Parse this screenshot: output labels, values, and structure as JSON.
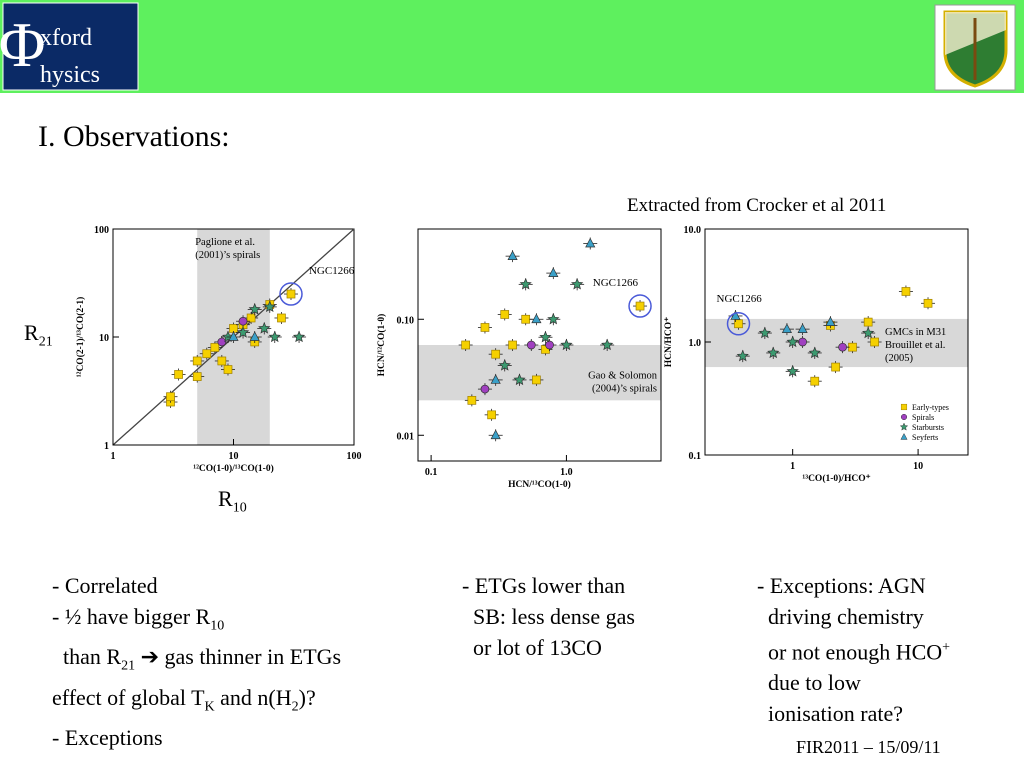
{
  "header": {
    "logo": [
      "Φ",
      "xford",
      "hysics"
    ]
  },
  "title": "I. Observations:",
  "credit": "Extracted from Crocker et al 2011",
  "footer": "FIR2011 – 15/09/11",
  "side_labels": [
    {
      "text": "R",
      "sub": "21"
    },
    {
      "text": "R",
      "sub": "10"
    }
  ],
  "columns": [
    [
      [
        "- Correlated"
      ],
      [
        "- ½ have bigger R",
        {
          "sub": "10"
        }
      ],
      [
        "  than R",
        {
          "sub": "21"
        },
        " ➔ gas thinner in ETGs"
      ],
      [
        "effect of global T",
        {
          "sub": "K"
        },
        " and n(H",
        {
          "sub": "2"
        },
        ")?"
      ],
      [
        "- Exceptions"
      ]
    ],
    [
      [
        "- ETGs lower than"
      ],
      [
        "  SB: less dense gas"
      ],
      [
        "  or lot of 13CO"
      ]
    ],
    [
      [
        "- Exceptions: AGN"
      ],
      [
        "  driving chemistry"
      ],
      [
        "  or not enough HCO",
        {
          "sup": "+"
        }
      ],
      [
        "  due to low"
      ],
      [
        "  ionisation rate?"
      ]
    ]
  ],
  "chart_data": [
    {
      "type": "scatter",
      "xlabel": "¹²CO(1-0)/¹³CO(1-0)",
      "ylabel": "¹²CO(2-1)/¹³CO(2-1)",
      "log_x": true,
      "log_y": true,
      "xlim": [
        1,
        100
      ],
      "ylim": [
        1,
        100
      ],
      "xticks": [
        1,
        10,
        100
      ],
      "yticks": [
        1,
        10,
        100
      ],
      "identity_line": true,
      "band": {
        "axis": "x",
        "range": [
          5,
          20
        ],
        "label": [
          "Paglione et al.",
          "(2001)’s  spirals"
        ]
      },
      "highlight": {
        "label": "NGC1266",
        "x": 30,
        "y": 25
      },
      "series": [
        {
          "marker": "square",
          "color": "#f5d000",
          "x": [
            3,
            3,
            3.5,
            5,
            5,
            6,
            7,
            8,
            9,
            10,
            12,
            14,
            15,
            20,
            25,
            30
          ],
          "y": [
            2.5,
            2.8,
            4.5,
            4.3,
            6,
            7,
            8,
            6,
            5,
            12,
            13,
            15,
            9,
            20,
            15,
            25
          ]
        },
        {
          "marker": "circle",
          "color": "#a040c0",
          "x": [
            8,
            12
          ],
          "y": [
            9,
            14
          ]
        },
        {
          "marker": "star",
          "color": "#3c9a70",
          "x": [
            9,
            12,
            15,
            18,
            20,
            22,
            35
          ],
          "y": [
            10,
            11,
            18,
            12,
            19,
            10,
            10
          ]
        },
        {
          "marker": "triangle",
          "color": "#3aa0c8",
          "x": [
            10,
            15
          ],
          "y": [
            10,
            10
          ]
        }
      ]
    },
    {
      "type": "scatter",
      "xlabel": "HCN/¹³CO(1-0)",
      "ylabel": "HCN/¹²CO(1-0)",
      "log_x": true,
      "log_y": true,
      "xlim": [
        0.08,
        5
      ],
      "ylim": [
        0.006,
        0.6
      ],
      "xticks": [
        0.1,
        {
          "value": 1,
          "label": "1.0"
        }
      ],
      "yticks": [
        0.01,
        {
          "value": 0.1,
          "label": "0.10"
        }
      ],
      "band": {
        "axis": "y",
        "range": [
          0.02,
          0.06
        ],
        "label": [
          "Gao & Solomon",
          "(2004)’s  spirals"
        ]
      },
      "highlight": {
        "label": "NGC1266",
        "x": 3.5,
        "y": 0.13
      },
      "series": [
        {
          "marker": "square",
          "color": "#f5d000",
          "x": [
            0.18,
            0.2,
            0.25,
            0.28,
            0.3,
            0.35,
            0.4,
            0.5,
            0.6,
            0.7,
            3.5
          ],
          "y": [
            0.06,
            0.02,
            0.085,
            0.015,
            0.05,
            0.11,
            0.06,
            0.1,
            0.03,
            0.055,
            0.13
          ]
        },
        {
          "marker": "circle",
          "color": "#a040c0",
          "x": [
            0.25,
            0.55,
            0.75
          ],
          "y": [
            0.025,
            0.06,
            0.06
          ]
        },
        {
          "marker": "star",
          "color": "#3c9a70",
          "x": [
            0.35,
            0.45,
            0.5,
            0.7,
            0.8,
            1.0,
            1.2,
            2
          ],
          "y": [
            0.04,
            0.03,
            0.2,
            0.07,
            0.1,
            0.06,
            0.2,
            0.06
          ]
        },
        {
          "marker": "triangle",
          "color": "#3aa0c8",
          "x": [
            0.3,
            0.3,
            0.4,
            0.8,
            1.5,
            0.6
          ],
          "y": [
            0.01,
            0.03,
            0.35,
            0.25,
            0.45,
            0.1
          ]
        }
      ]
    },
    {
      "type": "scatter",
      "xlabel": "¹³CO(1-0)/HCO⁺",
      "ylabel": "HCN/HCO⁺",
      "log_x": true,
      "log_y": true,
      "xlim": [
        0.2,
        25
      ],
      "ylim": [
        0.1,
        10
      ],
      "xticks": [
        1,
        10
      ],
      "yticks": [
        0.1,
        {
          "value": 1,
          "label": "1.0"
        },
        {
          "value": 10,
          "label": "10.0"
        }
      ],
      "band": {
        "axis": "y",
        "range": [
          0.6,
          1.6
        ],
        "label": [
          "GMCs in M31",
          "Brouillet et al.",
          "(2005)"
        ]
      },
      "highlight": {
        "label": "NGC1266",
        "x": 0.37,
        "y": 1.45
      },
      "legend": true,
      "series": [
        {
          "name": "Early-types",
          "marker": "square",
          "color": "#f5d000",
          "x": [
            0.37,
            1.5,
            2,
            2.2,
            3,
            4,
            4.5,
            8,
            12
          ],
          "y": [
            1.45,
            0.45,
            1.4,
            0.6,
            0.9,
            1.5,
            1.0,
            2.8,
            2.2
          ]
        },
        {
          "name": "Spirals",
          "marker": "circle",
          "color": "#a040c0",
          "x": [
            1.2,
            2.5
          ],
          "y": [
            1.0,
            0.9
          ]
        },
        {
          "name": "Starbursts",
          "marker": "star",
          "color": "#3c9a70",
          "x": [
            0.4,
            0.6,
            0.7,
            1.0,
            1.0,
            1.5,
            4
          ],
          "y": [
            0.75,
            1.2,
            0.8,
            1.0,
            0.55,
            0.8,
            1.2
          ]
        },
        {
          "name": "Seyferts",
          "marker": "triangle",
          "color": "#3aa0c8",
          "x": [
            0.35,
            0.9,
            1.2,
            2
          ],
          "y": [
            1.7,
            1.3,
            1.3,
            1.5
          ]
        }
      ]
    }
  ]
}
